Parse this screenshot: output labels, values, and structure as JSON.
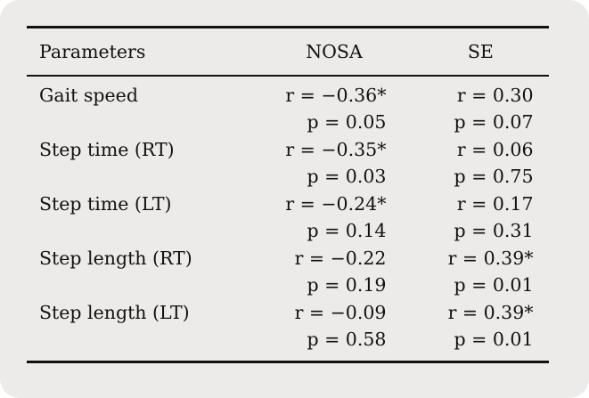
{
  "table": {
    "headers": [
      "Parameters",
      "NOSA",
      "SE"
    ],
    "rows": [
      {
        "param": "Gait speed",
        "nosa_r": "r = −0.36*",
        "nosa_p": "p = 0.05",
        "se_r": "r = 0.30",
        "se_p": "p = 0.07"
      },
      {
        "param": "Step time (RT)",
        "nosa_r": "r = −0.35*",
        "nosa_p": "p = 0.03",
        "se_r": "r = 0.06",
        "se_p": "p = 0.75"
      },
      {
        "param": "Step time (LT)",
        "nosa_r": "r = −0.24*",
        "nosa_p": "p = 0.14",
        "se_r": "r = 0.17",
        "se_p": "p = 0.31"
      },
      {
        "param": "Step length (RT)",
        "nosa_r": "r = −0.22",
        "nosa_p": "p = 0.19",
        "se_r": "r = 0.39*",
        "se_p": "p = 0.01"
      },
      {
        "param": "Step length (LT)",
        "nosa_r": "r = −0.09",
        "nosa_p": "p = 0.58",
        "se_r": "r = 0.39*",
        "se_p": "p = 0.01"
      }
    ]
  }
}
